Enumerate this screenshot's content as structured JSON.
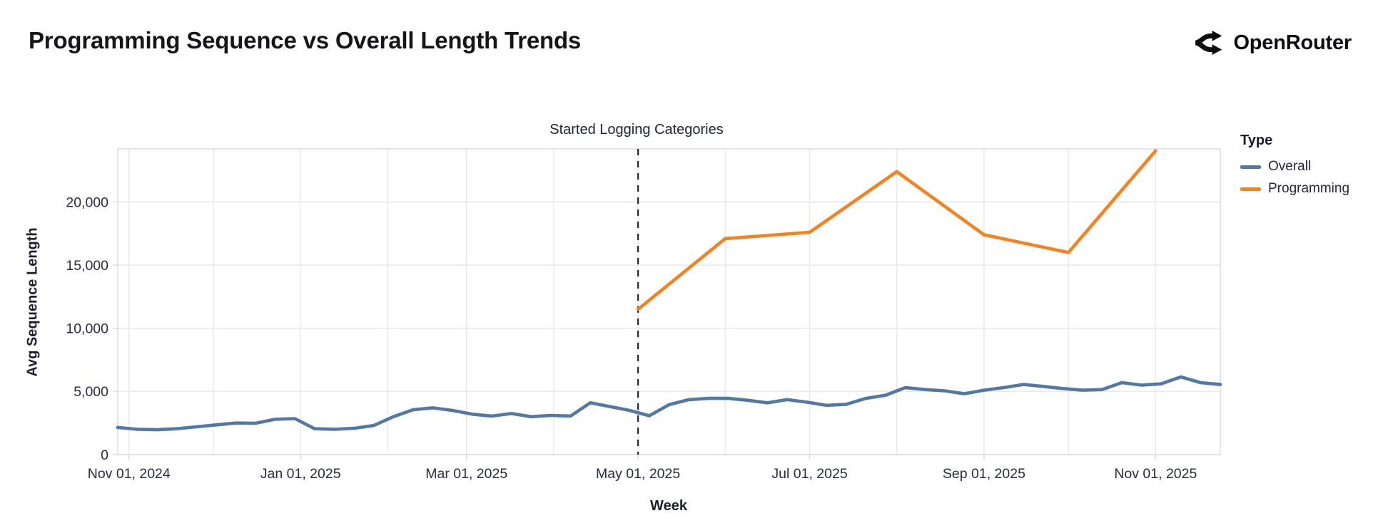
{
  "header": {
    "title": "Programming Sequence vs Overall Length Trends",
    "brand": "OpenRouter"
  },
  "chart_data": {
    "type": "line",
    "title": "Programming Sequence vs Overall Length Trends",
    "xlabel": "Week",
    "ylabel": "Avg Sequence Length",
    "legend_title": "Type",
    "legend_position": "right",
    "grid": true,
    "ylim": [
      0,
      24200
    ],
    "x_domain": [
      "2024-10-28",
      "2025-11-24"
    ],
    "y_ticks": [
      {
        "v": 0,
        "label": "0"
      },
      {
        "v": 5000,
        "label": "5,000"
      },
      {
        "v": 10000,
        "label": "10,000"
      },
      {
        "v": 15000,
        "label": "15,000"
      },
      {
        "v": 20000,
        "label": "20,000"
      }
    ],
    "x_ticks": [
      {
        "d": "2024-11-01",
        "label": "Nov 01, 2024"
      },
      {
        "d": "2025-01-01",
        "label": "Jan 01, 2025"
      },
      {
        "d": "2025-03-01",
        "label": "Mar 01, 2025"
      },
      {
        "d": "2025-05-01",
        "label": "May 01, 2025"
      },
      {
        "d": "2025-07-01",
        "label": "Jul 01, 2025"
      },
      {
        "d": "2025-09-01",
        "label": "Sep 01, 2025"
      },
      {
        "d": "2025-11-01",
        "label": "Nov 01, 2025"
      }
    ],
    "month_gridlines": [
      "2024-11-01",
      "2024-12-01",
      "2025-01-01",
      "2025-02-01",
      "2025-03-01",
      "2025-04-01",
      "2025-05-01",
      "2025-06-01",
      "2025-07-01",
      "2025-08-01",
      "2025-09-01",
      "2025-10-01",
      "2025-11-01"
    ],
    "annotation": {
      "text": "Started Logging Categories",
      "date": "2025-05-01"
    },
    "series": [
      {
        "name": "Overall",
        "color": "#5478A4",
        "points": [
          [
            "2024-10-28",
            2150
          ],
          [
            "2024-11-04",
            2000
          ],
          [
            "2024-11-11",
            1970
          ],
          [
            "2024-11-18",
            2050
          ],
          [
            "2024-11-25",
            2200
          ],
          [
            "2024-12-02",
            2350
          ],
          [
            "2024-12-09",
            2500
          ],
          [
            "2024-12-16",
            2480
          ],
          [
            "2024-12-23",
            2800
          ],
          [
            "2024-12-30",
            2850
          ],
          [
            "2025-01-06",
            2050
          ],
          [
            "2025-01-13",
            2000
          ],
          [
            "2025-01-20",
            2080
          ],
          [
            "2025-01-27",
            2300
          ],
          [
            "2025-02-03",
            3000
          ],
          [
            "2025-02-10",
            3550
          ],
          [
            "2025-02-17",
            3700
          ],
          [
            "2025-02-24",
            3500
          ],
          [
            "2025-03-03",
            3200
          ],
          [
            "2025-03-10",
            3050
          ],
          [
            "2025-03-17",
            3250
          ],
          [
            "2025-03-24",
            3000
          ],
          [
            "2025-03-31",
            3100
          ],
          [
            "2025-04-07",
            3050
          ],
          [
            "2025-04-14",
            4100
          ],
          [
            "2025-04-21",
            3800
          ],
          [
            "2025-04-28",
            3500
          ],
          [
            "2025-05-05",
            3075
          ],
          [
            "2025-05-12",
            3950
          ],
          [
            "2025-05-19",
            4350
          ],
          [
            "2025-05-26",
            4450
          ],
          [
            "2025-06-02",
            4450
          ],
          [
            "2025-06-09",
            4300
          ],
          [
            "2025-06-16",
            4100
          ],
          [
            "2025-06-23",
            4350
          ],
          [
            "2025-06-30",
            4150
          ],
          [
            "2025-07-07",
            3900
          ],
          [
            "2025-07-14",
            3980
          ],
          [
            "2025-07-21",
            4450
          ],
          [
            "2025-07-28",
            4700
          ],
          [
            "2025-08-04",
            5300
          ],
          [
            "2025-08-11",
            5150
          ],
          [
            "2025-08-18",
            5050
          ],
          [
            "2025-08-25",
            4820
          ],
          [
            "2025-09-01",
            5100
          ],
          [
            "2025-09-08",
            5300
          ],
          [
            "2025-09-15",
            5550
          ],
          [
            "2025-09-22",
            5400
          ],
          [
            "2025-09-29",
            5230
          ],
          [
            "2025-10-06",
            5100
          ],
          [
            "2025-10-13",
            5150
          ],
          [
            "2025-10-20",
            5700
          ],
          [
            "2025-10-27",
            5500
          ],
          [
            "2025-11-03",
            5600
          ],
          [
            "2025-11-10",
            6150
          ],
          [
            "2025-11-17",
            5700
          ],
          [
            "2025-11-24",
            5550
          ]
        ]
      },
      {
        "name": "Programming",
        "color": "#F5821F",
        "points": [
          [
            "2025-05-01",
            11500
          ],
          [
            "2025-06-01",
            17100
          ],
          [
            "2025-07-01",
            17600
          ],
          [
            "2025-08-01",
            22400
          ],
          [
            "2025-09-01",
            17400
          ],
          [
            "2025-10-01",
            16000
          ],
          [
            "2025-11-01",
            24050
          ]
        ]
      }
    ]
  }
}
